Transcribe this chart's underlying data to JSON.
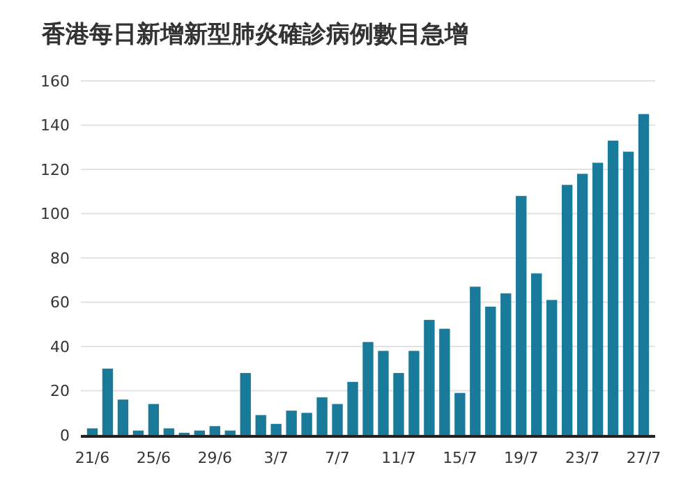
{
  "chart_data": {
    "type": "bar",
    "title": "香港每日新增新型肺炎確診病例數目急增",
    "categories": [
      "21/6",
      null,
      null,
      null,
      "25/6",
      null,
      null,
      null,
      "29/6",
      null,
      null,
      null,
      "3/7",
      null,
      null,
      null,
      "7/7",
      null,
      null,
      null,
      "11/7",
      null,
      null,
      null,
      "15/7",
      null,
      null,
      null,
      "19/7",
      null,
      null,
      null,
      "23/7",
      null,
      null,
      null,
      "27/7"
    ],
    "values": [
      3,
      30,
      16,
      2,
      14,
      3,
      1,
      2,
      4,
      2,
      28,
      9,
      5,
      11,
      10,
      17,
      14,
      24,
      42,
      38,
      28,
      38,
      52,
      48,
      19,
      67,
      58,
      64,
      108,
      73,
      61,
      113,
      118,
      123,
      133,
      128,
      145
    ],
    "color": "#1a7a99",
    "ylim": [
      0,
      160
    ],
    "yticks": [
      0,
      20,
      40,
      60,
      80,
      100,
      120,
      140,
      160
    ],
    "grid": "y"
  }
}
